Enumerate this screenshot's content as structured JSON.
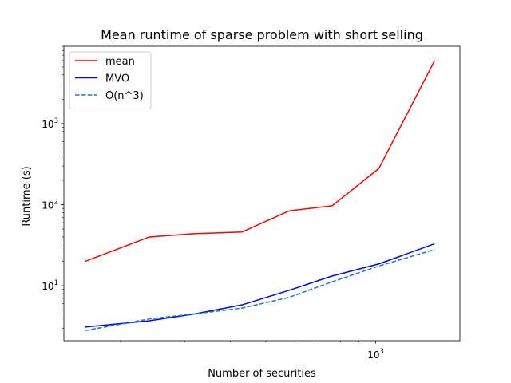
{
  "chart_data": {
    "type": "line",
    "title": "Mean runtime of sparse problem with short selling",
    "xlabel": "Number of securities",
    "ylabel": "Runtime (s)",
    "xscale": "log",
    "yscale": "log",
    "xlim": [
      140,
      1700
    ],
    "ylim": [
      2.1,
      9000
    ],
    "grid": false,
    "legend_position": "top-left",
    "x": [
      160,
      240,
      320,
      430,
      580,
      760,
      1020,
      1450
    ],
    "series": [
      {
        "name": "mean",
        "color": "#ff0000",
        "style": "solid",
        "values": [
          20,
          40,
          44,
          46,
          84,
          97,
          280,
          6000
        ]
      },
      {
        "name": "MVO",
        "color": "#0000ff",
        "style": "solid",
        "values": [
          3.1,
          3.7,
          4.5,
          5.8,
          8.8,
          13.2,
          18.6,
          33
        ]
      },
      {
        "name": "O(n^3)",
        "color": "#1f77b4",
        "style": "dashed",
        "values": [
          2.8,
          3.9,
          4.5,
          5.3,
          7.2,
          11.2,
          17.5,
          28
        ]
      }
    ],
    "y_major_ticks": [
      {
        "value": 10,
        "base": "10",
        "exp": "1"
      },
      {
        "value": 100,
        "base": "10",
        "exp": "2"
      },
      {
        "value": 1000,
        "base": "10",
        "exp": "3"
      }
    ],
    "x_major_ticks": [
      {
        "value": 1000,
        "base": "10",
        "exp": "3"
      }
    ]
  }
}
